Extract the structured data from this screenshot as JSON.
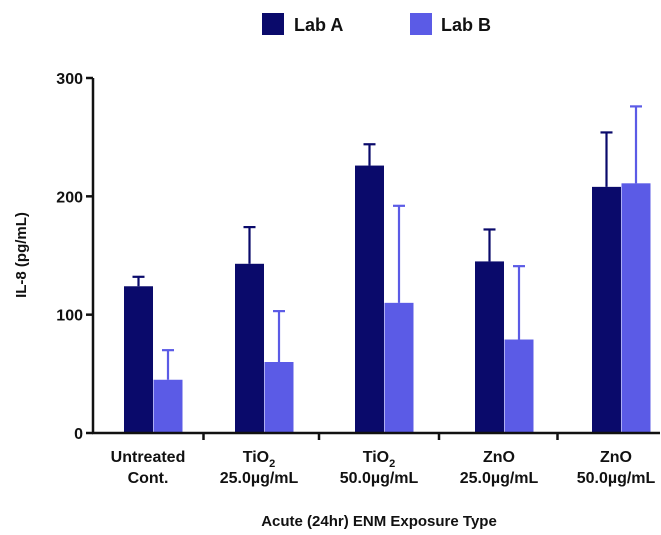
{
  "chart_data": {
    "type": "bar",
    "title": "",
    "xlabel": "Acute (24hr) ENM Exposure Type",
    "ylabel": "IL-8 (pg/mL)",
    "ylim": [
      0,
      300
    ],
    "yticks": [
      0,
      100,
      200,
      300
    ],
    "grid": false,
    "legend_position": "top-center",
    "categories": [
      {
        "line1": "Untreated",
        "line1_sub": "",
        "line2": "Cont."
      },
      {
        "line1": "TiO",
        "line1_sub": "2",
        "line2": "25.0µg/mL"
      },
      {
        "line1": "TiO",
        "line1_sub": "2",
        "line2": "50.0µg/mL"
      },
      {
        "line1": "ZnO",
        "line1_sub": "",
        "line2": "25.0µg/mL"
      },
      {
        "line1": "ZnO",
        "line1_sub": "",
        "line2": "50.0µg/mL"
      }
    ],
    "series": [
      {
        "name": "Lab A",
        "color": "#0a0a6b",
        "values": [
          124,
          143,
          226,
          145,
          208
        ],
        "error_upper": [
          132,
          174,
          244,
          172,
          254
        ]
      },
      {
        "name": "Lab B",
        "color": "#5b5be6",
        "values": [
          45,
          60,
          110,
          79,
          211
        ],
        "error_upper": [
          70,
          103,
          192,
          141,
          276
        ]
      }
    ]
  }
}
